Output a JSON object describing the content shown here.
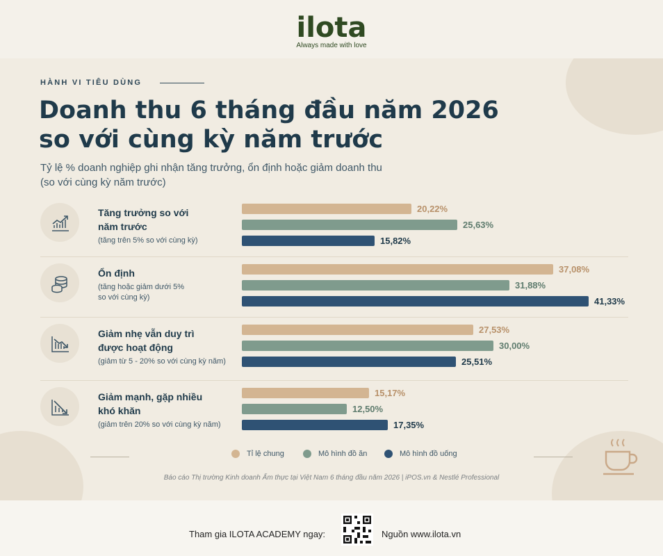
{
  "brand": {
    "logo_text": "ilota",
    "tagline": "Always made with love"
  },
  "header": {
    "kicker": "HÀNH VI TIÊU DÙNG",
    "title_line1": "Doanh thu 6 tháng đầu năm 2026",
    "title_line2": "so với cùng kỳ năm trước",
    "subtitle_line1": "Tỷ lệ % doanh nghiệp ghi nhận tăng trưởng, ổn định hoặc giảm doanh thu",
    "subtitle_line2": "(so với cùng kỳ năm trước)"
  },
  "colors": {
    "general": "#d3b592",
    "food": "#7f9b8d",
    "drink": "#2f5274"
  },
  "chart_data": {
    "type": "bar",
    "orientation": "horizontal",
    "categories": [
      {
        "title": [
          "Tăng trưởng so với",
          "năm trước"
        ],
        "note": [
          "(tăng trên 5% so với cùng kỳ)"
        ],
        "icon": "trend-up-icon"
      },
      {
        "title": [
          "Ổn định"
        ],
        "note": [
          "(tăng hoặc giảm dưới 5%",
          "so với cùng kỳ)"
        ],
        "icon": "coins-icon"
      },
      {
        "title": [
          "Giảm nhẹ vẫn duy trì",
          "được hoạt động"
        ],
        "note": [
          "(giảm từ 5 - 20% so với cùng kỳ năm)"
        ],
        "icon": "trend-down-icon"
      },
      {
        "title": [
          "Giảm mạnh, gặp nhiều",
          "khó khăn"
        ],
        "note": [
          "(giảm trên 20% so với cùng kỳ năm)"
        ],
        "icon": "trend-down-steep-icon"
      }
    ],
    "series": [
      {
        "name": "Tỉ lệ chung",
        "values": [
          20.22,
          37.08,
          27.53,
          15.17
        ],
        "labels": [
          "20,22%",
          "37,08%",
          "27,53%",
          "15,17%"
        ]
      },
      {
        "name": "Mô hình đồ ăn",
        "values": [
          25.63,
          31.88,
          30.0,
          12.5
        ],
        "labels": [
          "25,63%",
          "31,88%",
          "30,00%",
          "12,50%"
        ]
      },
      {
        "name": "Mô hình đồ uống",
        "values": [
          15.82,
          41.33,
          25.51,
          17.35
        ],
        "labels": [
          "15,82%",
          "41,33%",
          "25,51%",
          "17,35%"
        ]
      }
    ],
    "legend_position": "bottom-center"
  },
  "source_note": "Báo cáo Thị trường Kinh doanh Ẩm thực tại Việt Nam 6 tháng đầu năm 2026  |  iPOS.vn & Nestlé Professional",
  "footer": {
    "cta": "Tham gia ILOTA ACADEMY ngay:",
    "source": "Nguồn www.ilota.vn"
  }
}
